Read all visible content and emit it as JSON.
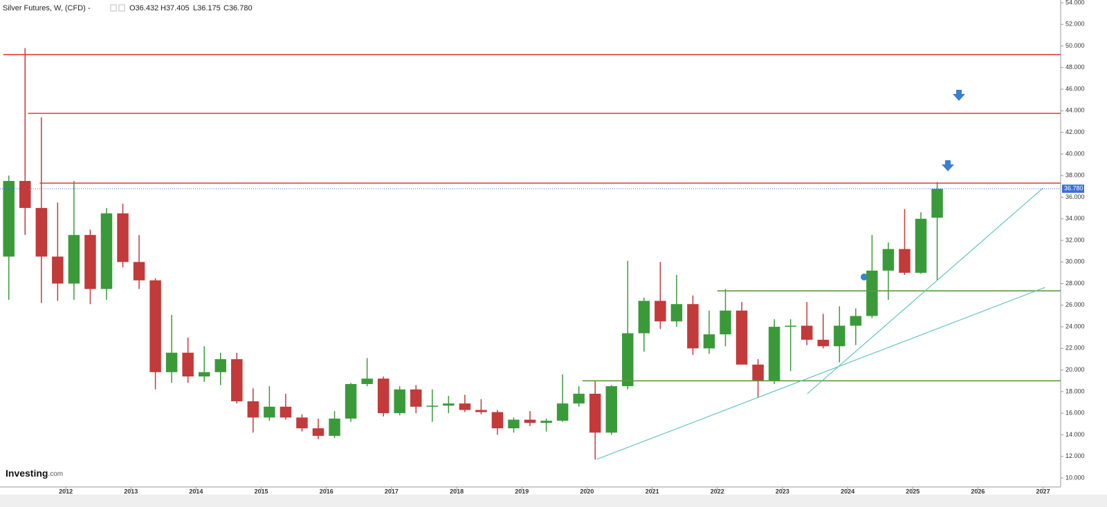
{
  "chart_data": {
    "type": "candlestick",
    "header": {
      "title": "Silver Futures, W, (CFD) -",
      "open": "O36.432",
      "high": "H37.405",
      "low": "L36.175",
      "close": "C36.780"
    },
    "logo": {
      "brand": "Investing",
      "suffix": ".com"
    },
    "x": [
      2011.0,
      2011.25,
      2011.5,
      2011.75,
      2012.0,
      2012.25,
      2012.5,
      2012.75,
      2013.0,
      2013.25,
      2013.5,
      2013.75,
      2014.0,
      2014.25,
      2014.5,
      2014.75,
      2015.0,
      2015.25,
      2015.5,
      2015.75,
      2016.0,
      2016.25,
      2016.5,
      2016.75,
      2017.0,
      2017.25,
      2017.5,
      2017.75,
      2018.0,
      2018.25,
      2018.5,
      2018.75,
      2019.0,
      2019.25,
      2019.5,
      2019.75,
      2020.0,
      2020.25,
      2020.5,
      2020.75,
      2021.0,
      2021.25,
      2021.5,
      2021.75,
      2022.0,
      2022.25,
      2022.5,
      2022.75,
      2023.0,
      2023.25,
      2023.5,
      2023.75,
      2024.0,
      2024.25,
      2024.5,
      2024.75,
      2025.0,
      2025.25
    ],
    "open": [
      30.5,
      37.5,
      35,
      30.5,
      28,
      32.5,
      27.5,
      34.5,
      30,
      28.3,
      19.8,
      21.6,
      19.4,
      19.8,
      21,
      17.1,
      15.6,
      16.6,
      15.6,
      14.6,
      13.9,
      15.5,
      18.7,
      19.2,
      16,
      18.2,
      16.6,
      16.7,
      16.9,
      16.3,
      16.1,
      14.6,
      15.4,
      15.1,
      15.3,
      16.9,
      17.8,
      14.2,
      18.5,
      23.4,
      26.4,
      24.5,
      26.1,
      22,
      23.3,
      25.5,
      20.5,
      19,
      24,
      24.1,
      22.8,
      22.2,
      24.1,
      25,
      29.2,
      31.2,
      29,
      34.1
    ],
    "high": [
      38,
      49.8,
      43.4,
      35.5,
      37.5,
      33,
      35,
      35.4,
      32.5,
      28.5,
      25.1,
      23,
      22.2,
      21.6,
      21.6,
      18.3,
      18.5,
      17.8,
      15.9,
      15.5,
      16.2,
      18.8,
      21.1,
      19.4,
      18.5,
      18.6,
      18.2,
      17.6,
      17.7,
      17.3,
      16.3,
      15.6,
      16.2,
      15.5,
      19.6,
      18.5,
      19,
      18.6,
      30.1,
      26.7,
      30,
      28.8,
      26.9,
      25.5,
      27.5,
      26.3,
      21,
      24.7,
      24.7,
      26.3,
      25.2,
      25.9,
      25.7,
      32.5,
      31.8,
      34.9,
      34.6,
      37.405
    ],
    "low": [
      26.5,
      32.5,
      26.2,
      26.4,
      26.5,
      26.1,
      26.5,
      29.5,
      27.5,
      18.2,
      18.8,
      18.8,
      18.9,
      18.6,
      16.9,
      14.2,
      15.3,
      15.4,
      14.3,
      13.6,
      13.7,
      15.2,
      18.5,
      15.7,
      15.8,
      16,
      15.2,
      16,
      16.1,
      15.9,
      14,
      14.2,
      14.8,
      14.3,
      15.2,
      16.6,
      11.7,
      14,
      18.2,
      21.7,
      23.8,
      24,
      21.4,
      21.5,
      22.2,
      20.5,
      17.5,
      18.7,
      19.9,
      22.3,
      22,
      20.7,
      22.3,
      24.8,
      26.5,
      28.8,
      28.9,
      28.3
    ],
    "close": [
      37.5,
      35,
      30.5,
      28,
      32.5,
      27.5,
      34.5,
      30,
      28.3,
      19.8,
      21.6,
      19.4,
      19.8,
      21,
      17.1,
      15.6,
      16.6,
      15.6,
      14.6,
      13.9,
      15.5,
      18.7,
      19.2,
      16,
      18.2,
      16.6,
      16.7,
      16.9,
      16.3,
      16.1,
      14.6,
      15.4,
      15.1,
      15.3,
      16.9,
      17.8,
      14.2,
      18.5,
      23.4,
      26.4,
      24.5,
      26.1,
      22,
      23.3,
      25.5,
      20.5,
      19,
      24,
      24.1,
      22.8,
      22.2,
      24.1,
      25,
      29.2,
      31.2,
      29,
      34,
      36.78
    ],
    "up_color": "#3a9a3a",
    "down_color": "#c23a3a",
    "xlim": [
      2010.99,
      2027.27
    ],
    "xticks": [
      2012,
      2013,
      2014,
      2015,
      2016,
      2017,
      2018,
      2019,
      2020,
      2021,
      2022,
      2023,
      2024,
      2025,
      2026,
      2027
    ],
    "ylim": [
      10,
      54
    ],
    "yticks": [
      {
        "value": 10,
        "label": "10.000"
      },
      {
        "value": 12,
        "label": "12.000"
      },
      {
        "value": 14,
        "label": "14.000"
      },
      {
        "value": 16,
        "label": "16.000"
      },
      {
        "value": 18,
        "label": "18.000"
      },
      {
        "value": 20,
        "label": "20.000"
      },
      {
        "value": 22,
        "label": "22.000"
      },
      {
        "value": 24,
        "label": "24.000"
      },
      {
        "value": 26,
        "label": "26.000"
      },
      {
        "value": 28,
        "label": "28.000"
      },
      {
        "value": 30,
        "label": "30.000"
      },
      {
        "value": 32,
        "label": "32.000"
      },
      {
        "value": 34,
        "label": "34.000"
      },
      {
        "value": 36,
        "label": "36.000"
      },
      {
        "value": 38,
        "label": "38.000"
      },
      {
        "value": 40,
        "label": "40.000"
      },
      {
        "value": 42,
        "label": "42.000"
      },
      {
        "value": 44,
        "label": "44.000"
      },
      {
        "value": 46,
        "label": "46.000"
      },
      {
        "value": 48,
        "label": "48.000"
      },
      {
        "value": 50,
        "label": "50.000"
      },
      {
        "value": 52,
        "label": "52.000"
      },
      {
        "value": 54,
        "label": "54.000"
      }
    ],
    "last_price": {
      "value": 36.78,
      "label": "36.780",
      "color": "#3b6fd1"
    },
    "levels": [
      {
        "value": 49.2,
        "from": 2011.04,
        "color": "#e53935"
      },
      {
        "value": 43.76,
        "from": 2011.42,
        "color": "#e53935"
      },
      {
        "value": 37.3,
        "from": 2011.6,
        "color": "#e53935"
      },
      {
        "value": 27.33,
        "from": 2022.0,
        "color": "#5a9a3c"
      },
      {
        "value": 19.0,
        "from": 2019.93,
        "color": "#5a9a3c"
      }
    ],
    "trendlines": [
      {
        "x": [
          2020.15,
          2027.03
        ],
        "y": [
          11.73,
          27.65
        ],
        "color": "#5fc7b8"
      },
      {
        "x": [
          2023.38,
          2027.0
        ],
        "y": [
          17.8,
          36.85
        ],
        "color": "#5fc7b8"
      }
    ]
  }
}
